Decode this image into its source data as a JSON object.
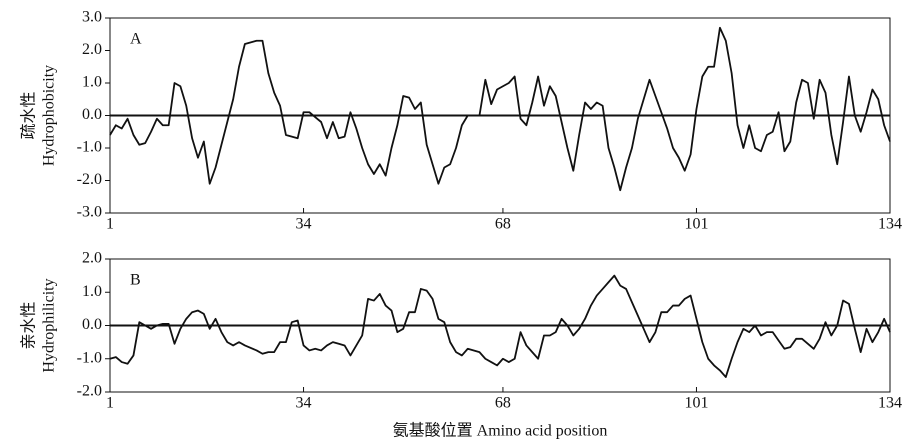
{
  "chart_data": [
    {
      "type": "line",
      "panel_label": "A",
      "y_label": [
        "疏水性",
        "Hydrophobicity"
      ],
      "x": [
        1,
        2,
        3,
        4,
        5,
        6,
        7,
        8,
        9,
        10,
        11,
        12,
        13,
        14,
        15,
        16,
        17,
        18,
        19,
        20,
        21,
        22,
        23,
        24,
        26,
        27,
        28,
        29,
        30,
        31,
        32,
        33,
        34,
        35,
        36,
        37,
        38,
        39,
        40,
        41,
        42,
        43,
        44,
        45,
        46,
        47,
        48,
        49,
        50,
        51,
        52,
        53,
        54,
        55,
        56,
        57,
        58,
        59,
        60,
        61,
        62,
        64,
        65,
        66,
        67,
        68,
        69,
        70,
        71,
        72,
        73,
        74,
        75,
        76,
        77,
        78,
        79,
        80,
        81,
        82,
        83,
        84,
        85,
        86,
        87,
        88,
        89,
        90,
        91,
        92,
        93,
        94,
        95,
        96,
        97,
        98,
        99,
        100,
        101,
        102,
        103,
        104,
        105,
        106,
        107,
        108,
        109,
        110,
        111,
        112,
        113,
        114,
        115,
        116,
        117,
        118,
        119,
        120,
        121,
        122,
        123,
        124,
        125,
        126,
        127,
        128,
        129,
        130,
        131,
        132,
        133,
        134
      ],
      "series": [
        {
          "color": "#111111",
          "values": [
            -0.6,
            -0.3,
            -0.4,
            -0.1,
            -0.6,
            -0.9,
            -0.85,
            -0.5,
            -0.1,
            -0.3,
            -0.3,
            1.0,
            0.9,
            0.3,
            -0.7,
            -1.3,
            -0.8,
            -2.1,
            -1.6,
            -0.9,
            -0.2,
            0.5,
            1.5,
            2.2,
            2.3,
            2.3,
            1.3,
            0.7,
            0.3,
            -0.6,
            -0.65,
            -0.7,
            0.1,
            0.1,
            -0.05,
            -0.2,
            -0.7,
            -0.2,
            -0.7,
            -0.65,
            0.1,
            -0.4,
            -1.0,
            -1.5,
            -1.8,
            -1.5,
            -1.85,
            -1.0,
            -0.3,
            0.6,
            0.55,
            0.2,
            0.4,
            -0.9,
            -1.5,
            -2.1,
            -1.6,
            -1.5,
            -1.0,
            -0.3,
            0.0,
            0.0,
            1.1,
            0.35,
            0.8,
            0.9,
            1.0,
            1.2,
            -0.1,
            -0.3,
            0.4,
            1.2,
            0.3,
            0.9,
            0.6,
            -0.2,
            -1.0,
            -1.7,
            -0.6,
            0.4,
            0.2,
            0.4,
            0.3,
            -1.0,
            -1.6,
            -2.3,
            -1.6,
            -1.0,
            -0.1,
            0.5,
            1.1,
            0.6,
            0.1,
            -0.4,
            -1.0,
            -1.3,
            -1.7,
            -1.2,
            0.2,
            1.2,
            1.5,
            1.5,
            2.7,
            2.3,
            1.3,
            -0.3,
            -1.0,
            -0.3,
            -1.0,
            -1.1,
            -0.6,
            -0.5,
            0.1,
            -1.1,
            -0.8,
            0.4,
            1.1,
            1.0,
            -0.1,
            1.1,
            0.7,
            -0.6,
            -1.5,
            -0.2,
            1.2,
            0.0,
            -0.5,
            0.1,
            0.8,
            0.5,
            -0.3,
            -0.8
          ]
        }
      ],
      "xlim": [
        1,
        134
      ],
      "xticks": [
        1,
        34,
        68,
        101,
        134
      ],
      "ylim": [
        -3,
        3
      ],
      "yticks": [
        {
          "value": -3,
          "label": "-3.0"
        },
        {
          "value": -2,
          "label": "-2.0"
        },
        {
          "value": -1,
          "label": "-1.0"
        },
        {
          "value": 0,
          "label": "0.0"
        },
        {
          "value": 1,
          "label": "1.0"
        },
        {
          "value": 2,
          "label": "2.0"
        },
        {
          "value": 3,
          "label": "3.0"
        }
      ]
    },
    {
      "type": "line",
      "panel_label": "B",
      "y_label": [
        "亲水性",
        "Hydrophilicity"
      ],
      "x_label": "氨基酸位置 Amino acid position",
      "x": [
        1,
        2,
        3,
        4,
        5,
        6,
        7,
        8,
        9,
        10,
        11,
        12,
        13,
        14,
        15,
        16,
        17,
        18,
        19,
        20,
        21,
        22,
        23,
        24,
        26,
        27,
        28,
        29,
        30,
        31,
        32,
        33,
        34,
        35,
        36,
        37,
        38,
        39,
        40,
        41,
        42,
        43,
        44,
        45,
        46,
        47,
        48,
        49,
        50,
        51,
        52,
        53,
        54,
        55,
        56,
        57,
        58,
        59,
        60,
        61,
        62,
        64,
        65,
        66,
        67,
        68,
        69,
        70,
        71,
        72,
        73,
        74,
        75,
        76,
        77,
        78,
        79,
        80,
        81,
        82,
        83,
        84,
        85,
        86,
        87,
        88,
        89,
        90,
        91,
        92,
        93,
        94,
        95,
        96,
        97,
        98,
        99,
        100,
        101,
        102,
        103,
        104,
        105,
        106,
        107,
        108,
        109,
        110,
        111,
        112,
        113,
        114,
        115,
        116,
        117,
        118,
        119,
        120,
        121,
        122,
        123,
        124,
        125,
        126,
        127,
        128,
        129,
        130,
        131,
        132,
        133,
        134
      ],
      "series": [
        {
          "color": "#111111",
          "values": [
            -1.0,
            -0.95,
            -1.1,
            -1.15,
            -0.9,
            0.1,
            0.0,
            -0.1,
            0.0,
            0.05,
            0.05,
            -0.55,
            -0.1,
            0.2,
            0.4,
            0.45,
            0.35,
            -0.1,
            0.2,
            -0.2,
            -0.5,
            -0.6,
            -0.5,
            -0.6,
            -0.75,
            -0.85,
            -0.8,
            -0.8,
            -0.5,
            -0.5,
            0.1,
            0.15,
            -0.6,
            -0.75,
            -0.7,
            -0.75,
            -0.6,
            -0.5,
            -0.55,
            -0.6,
            -0.9,
            -0.6,
            -0.3,
            0.8,
            0.75,
            0.95,
            0.6,
            0.45,
            -0.2,
            -0.1,
            0.4,
            0.4,
            1.1,
            1.05,
            0.8,
            0.2,
            0.1,
            -0.5,
            -0.8,
            -0.9,
            -0.7,
            -0.8,
            -1.0,
            -1.1,
            -1.2,
            -1.0,
            -1.1,
            -1.0,
            -0.2,
            -0.6,
            -0.8,
            -1.0,
            -0.3,
            -0.3,
            -0.2,
            0.2,
            0.0,
            -0.3,
            -0.1,
            0.2,
            0.6,
            0.9,
            1.1,
            1.3,
            1.5,
            1.2,
            1.1,
            0.7,
            0.3,
            -0.1,
            -0.5,
            -0.2,
            0.4,
            0.4,
            0.6,
            0.6,
            0.8,
            0.9,
            0.2,
            -0.5,
            -1.0,
            -1.2,
            -1.35,
            -1.55,
            -1.0,
            -0.5,
            -0.1,
            -0.2,
            0.0,
            -0.3,
            -0.2,
            -0.2,
            -0.45,
            -0.7,
            -0.65,
            -0.4,
            -0.4,
            -0.55,
            -0.7,
            -0.4,
            0.1,
            -0.3,
            0.0,
            0.75,
            0.65,
            -0.1,
            -0.8,
            -0.1,
            -0.5,
            -0.2,
            0.2,
            -0.2
          ]
        }
      ],
      "xlim": [
        1,
        134
      ],
      "xticks": [
        1,
        34,
        68,
        101,
        134
      ],
      "ylim": [
        -2,
        2
      ],
      "yticks": [
        {
          "value": -2,
          "label": "-2.0"
        },
        {
          "value": -1,
          "label": "-1.0"
        },
        {
          "value": 0,
          "label": "0.0"
        },
        {
          "value": 1,
          "label": "1.0"
        },
        {
          "value": 2,
          "label": "2.0"
        }
      ]
    }
  ]
}
